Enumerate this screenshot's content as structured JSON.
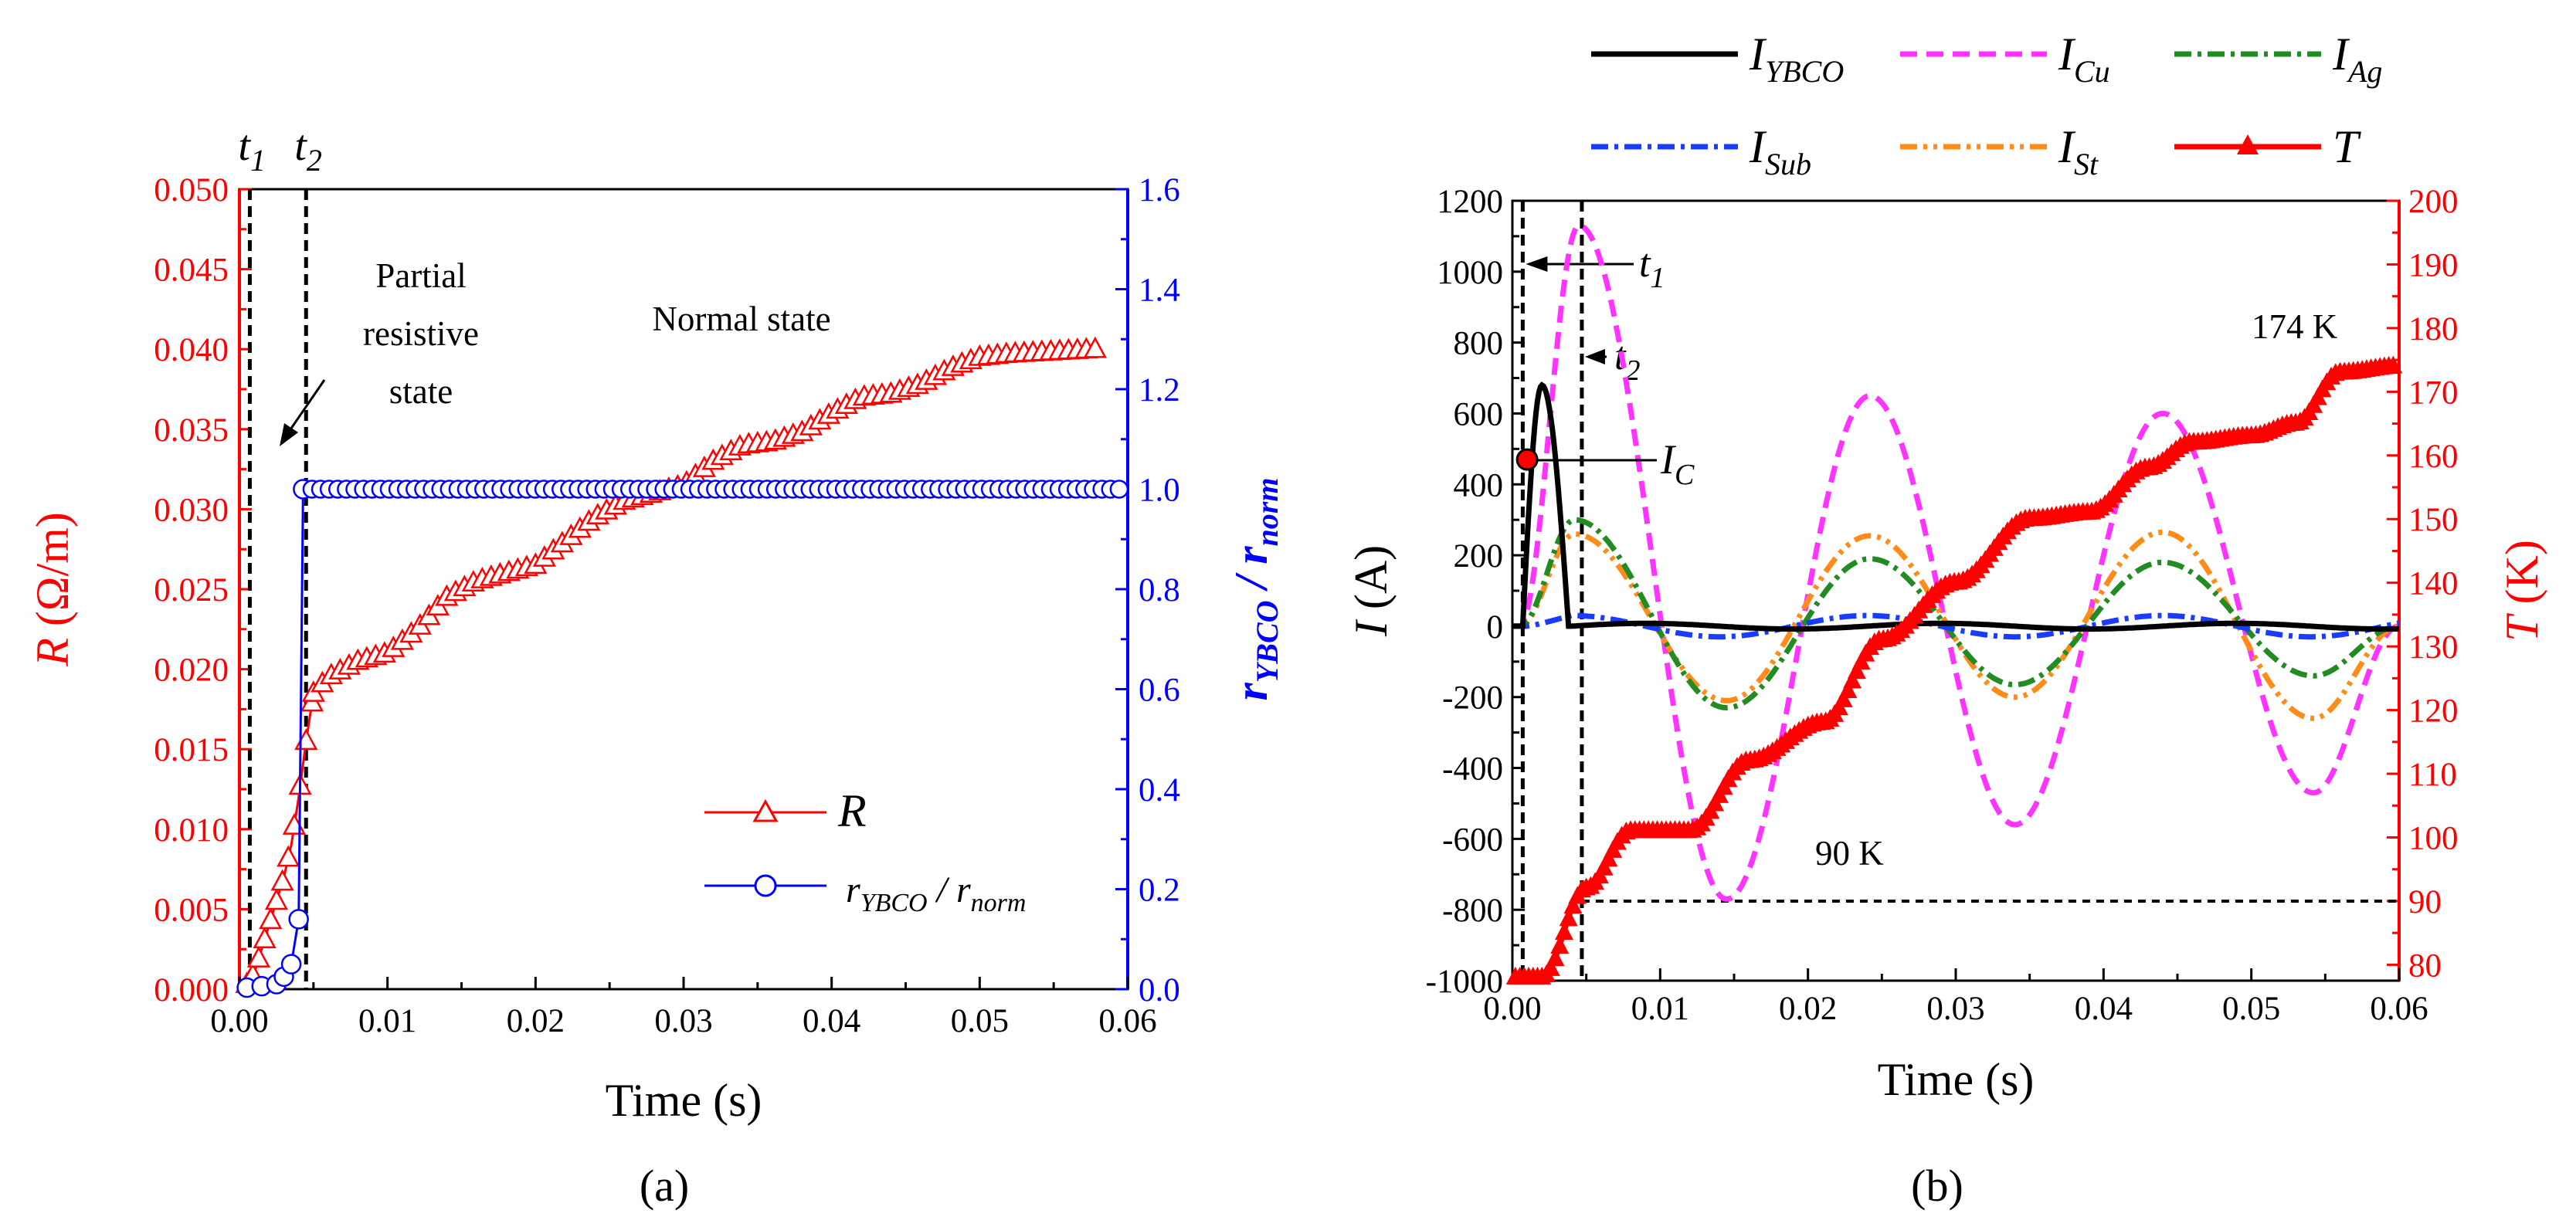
{
  "chart_data": [
    {
      "panel_label": "(a)",
      "type": "line",
      "xlabel": "Time (s)",
      "ylabel_left_var": "R",
      "ylabel_left_unit": " (Ω/m)",
      "ylabel_right_main": "r",
      "ylabel_right_sub1": "YBCO",
      "ylabel_right_mid": " / r",
      "ylabel_right_sub2": "norm",
      "xlim": [
        0,
        0.06
      ],
      "ylim_left": [
        0,
        0.05
      ],
      "ylim_right": [
        0,
        1.6
      ],
      "xticks": [
        "0.00",
        "0.01",
        "0.02",
        "0.03",
        "0.04",
        "0.05",
        "0.06"
      ],
      "yticks_left": [
        "0.000",
        "0.005",
        "0.010",
        "0.015",
        "0.020",
        "0.025",
        "0.030",
        "0.035",
        "0.040",
        "0.045",
        "0.050"
      ],
      "yticks_right": [
        "0.0",
        "0.2",
        "0.4",
        "0.6",
        "0.8",
        "1.0",
        "1.2",
        "1.4",
        "1.6"
      ],
      "vlines": [
        {
          "label": "t",
          "sub": "1",
          "x": 0.0007
        },
        {
          "label": "t",
          "sub": "2",
          "x": 0.0045
        }
      ],
      "annotations": [
        {
          "lines": [
            "Partial",
            "resistive",
            "state"
          ]
        },
        {
          "lines": [
            "Normal state"
          ]
        }
      ],
      "legend": [
        {
          "label": "R",
          "color": "#ff0000",
          "marker": "triangle"
        },
        {
          "label_main": "r",
          "label_sub1": "YBCO",
          "label_mid": " / r",
          "label_sub2": "norm",
          "color": "#0000ff",
          "marker": "circle"
        }
      ],
      "series": [
        {
          "name": "R",
          "axis": "left",
          "color": "#ff0000",
          "marker": "triangle",
          "x": [
            0.0005,
            0.001,
            0.0015,
            0.002,
            0.0025,
            0.003,
            0.0035,
            0.004,
            0.0045,
            0.005,
            0.006,
            0.008,
            0.01,
            0.012,
            0.014,
            0.016,
            0.018,
            0.02,
            0.022,
            0.024,
            0.026,
            0.028,
            0.03,
            0.032,
            0.034,
            0.036,
            0.038,
            0.04,
            0.042,
            0.044,
            0.046,
            0.048,
            0.05,
            0.052,
            0.054,
            0.056,
            0.058
          ],
          "y": [
            0.0003,
            0.001,
            0.0025,
            0.004,
            0.0055,
            0.007,
            0.009,
            0.012,
            0.0155,
            0.0185,
            0.0195,
            0.0205,
            0.021,
            0.0225,
            0.0245,
            0.0255,
            0.026,
            0.0265,
            0.028,
            0.0295,
            0.0305,
            0.031,
            0.0315,
            0.033,
            0.034,
            0.0342,
            0.0348,
            0.036,
            0.037,
            0.0372,
            0.0378,
            0.0388,
            0.0395,
            0.0397,
            0.0398,
            0.0399,
            0.04
          ]
        },
        {
          "name": "rYBCO/rnorm",
          "axis": "right",
          "color": "#0000ff",
          "marker": "circle",
          "x": [
            0.0005,
            0.0015,
            0.0025,
            0.003,
            0.0035,
            0.004,
            0.0043
          ],
          "y": [
            0.003,
            0.006,
            0.01,
            0.025,
            0.05,
            0.14,
            1.0
          ],
          "plateau": {
            "from": 0.0043,
            "to": 0.06,
            "y": 1.0
          }
        }
      ]
    },
    {
      "panel_label": "(b)",
      "type": "line",
      "xlabel": "Time (s)",
      "ylabel_left_var": "I",
      "ylabel_left_unit": " (A)",
      "ylabel_right_var": "T",
      "ylabel_right_unit": " (K)",
      "xlim": [
        0,
        0.06
      ],
      "ylim_left": [
        -1000,
        1200
      ],
      "ylim_right": [
        77.5,
        200
      ],
      "xticks": [
        "0.00",
        "0.01",
        "0.02",
        "0.03",
        "0.04",
        "0.05",
        "0.06"
      ],
      "yticks_left": [
        "-1000",
        "-800",
        "-600",
        "-400",
        "-200",
        "0",
        "200",
        "400",
        "600",
        "800",
        "1000",
        "1200"
      ],
      "yticks_right": [
        "80",
        "90",
        "100",
        "110",
        "120",
        "130",
        "140",
        "150",
        "160",
        "170",
        "180",
        "190",
        "200"
      ],
      "vlines": [
        {
          "label": "t",
          "sub": "1",
          "x": 0.0007
        },
        {
          "label": "t",
          "sub": "2",
          "x": 0.0047
        }
      ],
      "annotations": [
        {
          "label": "I",
          "sub": "C"
        },
        {
          "text": "174 K"
        },
        {
          "text": "90 K"
        }
      ],
      "legend": [
        {
          "main": "I",
          "sub": "YBCO",
          "color": "#000000"
        },
        {
          "main": "I",
          "sub": "Cu",
          "color": "#ff33ff"
        },
        {
          "main": "I",
          "sub": "Ag",
          "color": "#228b22"
        },
        {
          "main": "I",
          "sub": "Sub",
          "color": "#1a3cff"
        },
        {
          "main": "I",
          "sub": "St",
          "color": "#ff8c1a"
        },
        {
          "main": "T",
          "sub": "",
          "color": "#ff0000"
        }
      ],
      "series": [
        {
          "name": "I_YBCO",
          "axis": "left",
          "color": "#000000",
          "peak": 680,
          "peak_time": 0.002,
          "tail_amplitude": 8
        },
        {
          "name": "I_Cu",
          "axis": "left",
          "color": "#ff33ff",
          "peaks": [
            [
              0.0045,
              1130
            ],
            [
              0.0145,
              -770
            ],
            [
              0.0242,
              650
            ],
            [
              0.034,
              -560
            ],
            [
              0.044,
              600
            ],
            [
              0.0542,
              -470
            ]
          ]
        },
        {
          "name": "I_Ag",
          "axis": "left",
          "color": "#228b22",
          "peaks": [
            [
              0.0042,
              300
            ],
            [
              0.0145,
              -230
            ],
            [
              0.0242,
              190
            ],
            [
              0.034,
              -165
            ],
            [
              0.044,
              180
            ],
            [
              0.0542,
              -140
            ]
          ]
        },
        {
          "name": "I_Sub",
          "axis": "left",
          "color": "#1a3cff",
          "peak": 30
        },
        {
          "name": "I_St",
          "axis": "left",
          "color": "#ff8c1a",
          "peaks": [
            [
              0.0042,
              260
            ],
            [
              0.0145,
              -210
            ],
            [
              0.0242,
              255
            ],
            [
              0.034,
              -200
            ],
            [
              0.044,
              265
            ],
            [
              0.0542,
              -260
            ]
          ]
        },
        {
          "name": "T",
          "axis": "right",
          "color": "#ff0000",
          "start": 78,
          "end": 174,
          "steps": [
            [
              0.0,
              78
            ],
            [
              0.002,
              78
            ],
            [
              0.005,
              92
            ],
            [
              0.008,
              101
            ],
            [
              0.012,
              101
            ],
            [
              0.016,
              112
            ],
            [
              0.021,
              118
            ],
            [
              0.025,
              131
            ],
            [
              0.03,
              140
            ],
            [
              0.035,
              150
            ],
            [
              0.039,
              151
            ],
            [
              0.043,
              158
            ],
            [
              0.046,
              162
            ],
            [
              0.05,
              163
            ],
            [
              0.053,
              165
            ],
            [
              0.056,
              173
            ],
            [
              0.06,
              174
            ]
          ]
        }
      ]
    }
  ]
}
